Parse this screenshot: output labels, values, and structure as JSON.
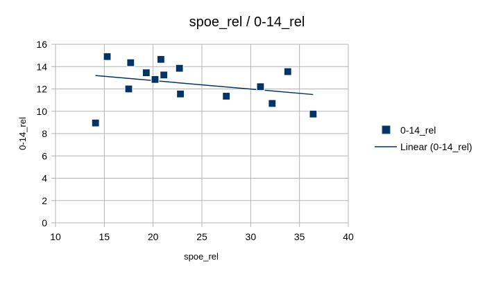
{
  "chart_data": {
    "type": "scatter",
    "title": "spoe_rel / 0-14_rel",
    "xlabel": "spoe_rel",
    "ylabel": "0-14_rel",
    "xlim": [
      10,
      40
    ],
    "ylim": [
      0,
      16
    ],
    "x_ticks": [
      10,
      15,
      20,
      25,
      30,
      35,
      40
    ],
    "y_ticks": [
      0,
      2,
      4,
      6,
      8,
      10,
      12,
      14,
      16
    ],
    "grid": true,
    "legend_position": "right",
    "series": [
      {
        "name": "0-14_rel",
        "color": "#003366",
        "marker": "square",
        "points": [
          {
            "x": 14.1,
            "y": 8.95
          },
          {
            "x": 15.3,
            "y": 14.9
          },
          {
            "x": 17.5,
            "y": 12.0
          },
          {
            "x": 17.7,
            "y": 14.35
          },
          {
            "x": 19.3,
            "y": 13.45
          },
          {
            "x": 20.2,
            "y": 12.85
          },
          {
            "x": 20.8,
            "y": 14.65
          },
          {
            "x": 21.1,
            "y": 13.25
          },
          {
            "x": 22.7,
            "y": 13.85
          },
          {
            "x": 22.8,
            "y": 11.55
          },
          {
            "x": 27.5,
            "y": 11.35
          },
          {
            "x": 31.0,
            "y": 12.2
          },
          {
            "x": 32.2,
            "y": 10.7
          },
          {
            "x": 33.8,
            "y": 13.55
          },
          {
            "x": 36.4,
            "y": 9.75
          }
        ]
      }
    ],
    "trendline": {
      "name": "Linear (0-14_rel)",
      "type": "linear",
      "color": "#003366",
      "x_range": [
        14.1,
        36.4
      ],
      "y_range": [
        13.2,
        11.5
      ]
    }
  }
}
